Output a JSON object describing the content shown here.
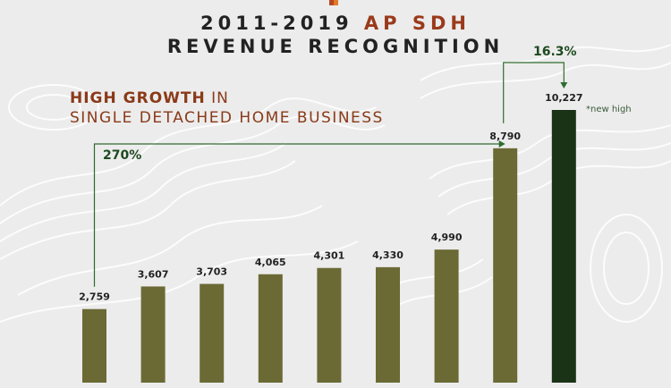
{
  "header": {
    "title_prefix": "2011-2019",
    "title_accent": "AP SDH",
    "title_line2": "REVENUE RECOGNITION"
  },
  "subtitle": {
    "bold": "HIGH GROWTH",
    "rest": "IN",
    "line2": "SINGLE DETACHED HOME BUSINESS"
  },
  "annotations": {
    "total_growth": "270%",
    "yoy_growth": "16.3%",
    "new_high": "*new high"
  },
  "colors": {
    "bar": "#6b6a35",
    "bar_highlight": "#1a3317",
    "arrow": "#2f6b2f",
    "accent": "#9a3a1b"
  },
  "chart_data": {
    "type": "bar",
    "title": "2011-2019 AP SDH REVENUE RECOGNITION",
    "values": [
      2759,
      3607,
      3703,
      4065,
      4301,
      4330,
      4990,
      8790,
      10227
    ],
    "value_labels": [
      "2,759",
      "3,607",
      "3,703",
      "4,065",
      "4,301",
      "4,330",
      "4,990",
      "8,790",
      "10,227"
    ],
    "highlight_index": 8,
    "ylim": [
      0,
      10227
    ],
    "grid": false,
    "legend": "none"
  }
}
